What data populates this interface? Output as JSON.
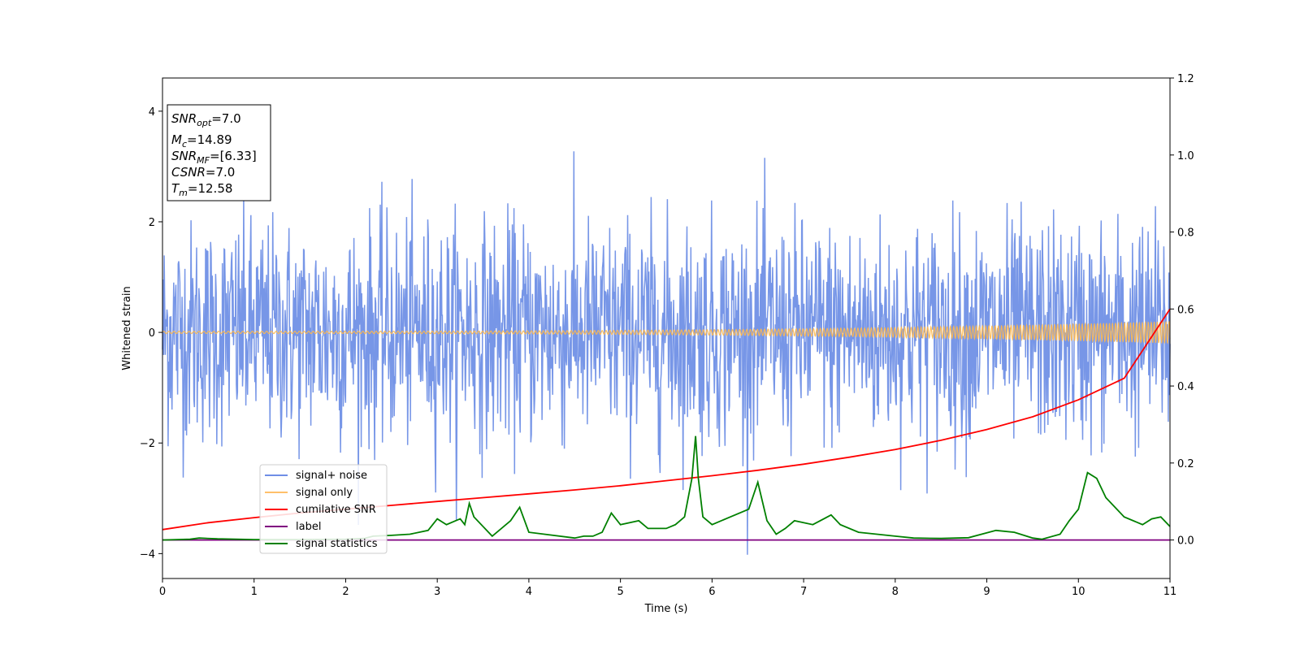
{
  "chart_data": {
    "type": "line",
    "xlabel": "Time (s)",
    "ylabel": "Whitened strain",
    "xlim": [
      0,
      11
    ],
    "ylim": [
      -4.45,
      4.6
    ],
    "y2lim": [
      -0.1,
      1.2
    ],
    "xticks": [
      0,
      1,
      2,
      3,
      4,
      5,
      6,
      7,
      8,
      9,
      10,
      11
    ],
    "yticks": [
      -4,
      -2,
      0,
      2,
      4
    ],
    "y2ticks": [
      0.0,
      0.2,
      0.4,
      0.6,
      0.8,
      1.0,
      1.2
    ],
    "xtick_labels": [
      "0",
      "1",
      "2",
      "3",
      "4",
      "5",
      "6",
      "7",
      "8",
      "9",
      "10",
      "11"
    ],
    "ytick_labels": [
      "−4",
      "−2",
      "0",
      "2",
      "4"
    ],
    "y2tick_labels": [
      "0.0",
      "0.2",
      "0.4",
      "0.6",
      "0.8",
      "1.0",
      "1.2"
    ],
    "annotation": {
      "lines": [
        {
          "base": "SNR",
          "sub": "opt",
          "value": "=7.0"
        },
        {
          "base": "M",
          "sub": "c",
          "value": "=14.89"
        },
        {
          "base": "SNR",
          "sub": "MF",
          "value": "=[6.33]"
        },
        {
          "base": "CSNR",
          "sub": "",
          "value": "=7.0"
        },
        {
          "base": "T",
          "sub": "m",
          "value": "=12.58"
        }
      ]
    },
    "legend": {
      "location": "lower-left",
      "entries": [
        {
          "label": "signal+ noise",
          "color": "#6f8ee6"
        },
        {
          "label": "signal only",
          "color": "#ffc06a"
        },
        {
          "label": "cumilative SNR",
          "color": "#ff0000"
        },
        {
          "label": "label",
          "color": "#800080"
        },
        {
          "label": "signal statistics",
          "color": "#008000"
        }
      ]
    },
    "series": [
      {
        "name": "signal+ noise",
        "axis": "left",
        "color": "#7090e6",
        "kind": "noise",
        "center": 0,
        "sigma": 1.0,
        "min": -4.05,
        "max": 4.18,
        "samples": 1800
      },
      {
        "name": "signal only",
        "axis": "left",
        "color": "#ffb84d",
        "kind": "chirp",
        "amplitude_start": 0.02,
        "amplitude_end": 0.2
      },
      {
        "name": "cumilative SNR",
        "axis": "right",
        "x": [
          0,
          0.5,
          1,
          1.5,
          2,
          2.5,
          3,
          3.5,
          4,
          4.5,
          5,
          5.5,
          6,
          6.5,
          7,
          7.5,
          8,
          8.5,
          9,
          9.5,
          10,
          10.5,
          11
        ],
        "values": [
          0.027,
          0.045,
          0.058,
          0.07,
          0.08,
          0.09,
          0.1,
          0.11,
          0.12,
          0.13,
          0.141,
          0.154,
          0.167,
          0.181,
          0.197,
          0.215,
          0.235,
          0.259,
          0.287,
          0.32,
          0.364,
          0.42,
          0.6
        ]
      },
      {
        "name": "label",
        "axis": "right",
        "x": [
          0,
          11
        ],
        "values": [
          0.0,
          0.0
        ]
      },
      {
        "name": "signal statistics",
        "axis": "right",
        "x": [
          0,
          0.3,
          0.4,
          0.6,
          1.0,
          1.5,
          2.0,
          2.2,
          2.3,
          2.5,
          2.7,
          2.9,
          3.0,
          3.1,
          3.2,
          3.25,
          3.3,
          3.35,
          3.4,
          3.6,
          3.8,
          3.9,
          4.0,
          4.5,
          4.6,
          4.7,
          4.8,
          4.9,
          5.0,
          5.2,
          5.3,
          5.5,
          5.6,
          5.7,
          5.78,
          5.82,
          5.85,
          5.9,
          6.0,
          6.2,
          6.4,
          6.5,
          6.6,
          6.7,
          6.8,
          6.9,
          7.1,
          7.3,
          7.4,
          7.6,
          7.8,
          8.0,
          8.2,
          8.5,
          8.8,
          9.1,
          9.3,
          9.5,
          9.6,
          9.8,
          9.9,
          10.0,
          10.1,
          10.2,
          10.3,
          10.5,
          10.7,
          10.8,
          10.9,
          11.0
        ],
        "values": [
          0.0,
          0.002,
          0.005,
          0.003,
          0.001,
          0.001,
          0.002,
          0.004,
          0.01,
          0.012,
          0.015,
          0.025,
          0.055,
          0.04,
          0.05,
          0.055,
          0.04,
          0.095,
          0.06,
          0.01,
          0.05,
          0.085,
          0.02,
          0.005,
          0.01,
          0.01,
          0.02,
          0.07,
          0.04,
          0.05,
          0.03,
          0.03,
          0.04,
          0.06,
          0.16,
          0.27,
          0.16,
          0.06,
          0.04,
          0.06,
          0.08,
          0.15,
          0.05,
          0.015,
          0.03,
          0.05,
          0.04,
          0.065,
          0.04,
          0.02,
          0.015,
          0.01,
          0.005,
          0.004,
          0.006,
          0.025,
          0.02,
          0.005,
          0.002,
          0.015,
          0.05,
          0.08,
          0.175,
          0.16,
          0.11,
          0.06,
          0.04,
          0.055,
          0.06,
          0.035
        ]
      }
    ]
  }
}
